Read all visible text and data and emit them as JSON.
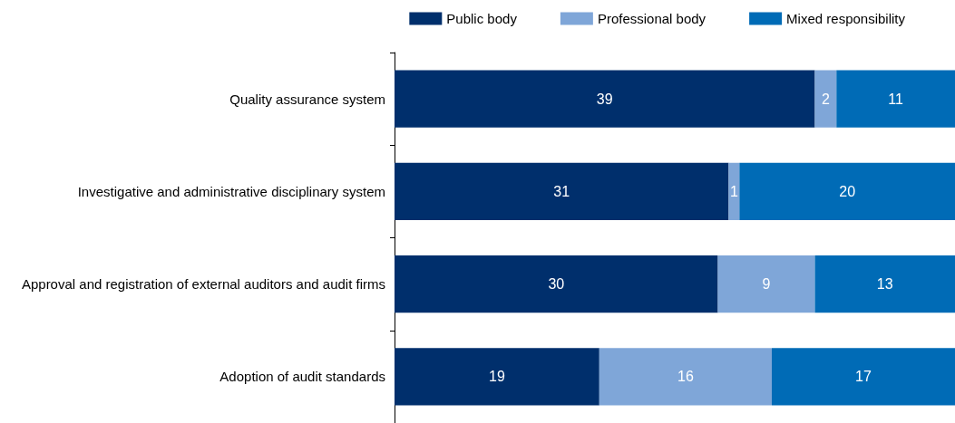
{
  "chart_data": {
    "type": "bar",
    "orientation": "horizontal",
    "stacked": true,
    "categories": [
      "Quality assurance system",
      "Investigative and administrative disciplinary system",
      "Approval and registration of external auditors and audit firms",
      "Adoption of audit standards"
    ],
    "series": [
      {
        "name": "Public body",
        "color": "#002f6c",
        "values": [
          39,
          31,
          30,
          19
        ]
      },
      {
        "name": "Professional body",
        "color": "#7fa6d8",
        "values": [
          2,
          1,
          9,
          16
        ]
      },
      {
        "name": "Mixed responsibility",
        "color": "#006bb6",
        "values": [
          11,
          20,
          13,
          17
        ]
      }
    ],
    "xlim": [
      0,
      52
    ],
    "tick_labels": "y",
    "data_labels": true,
    "legend": "top right"
  }
}
